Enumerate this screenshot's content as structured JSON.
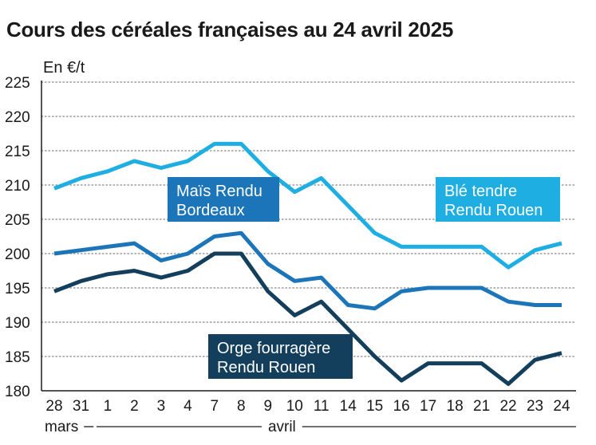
{
  "title": "Cours des céréales françaises au 24 avril 2025",
  "chart_data": {
    "type": "line",
    "title": "Cours des céréales françaises au 24 avril 2025",
    "ylabel": "En €/t",
    "xlabel": "",
    "ylim": [
      180,
      225
    ],
    "yticks": [
      180,
      185,
      190,
      195,
      200,
      205,
      210,
      215,
      220,
      225
    ],
    "grid": true,
    "categories": [
      "28",
      "31",
      "1",
      "2",
      "3",
      "4",
      "7",
      "8",
      "9",
      "10",
      "11",
      "14",
      "15",
      "16",
      "17",
      "18",
      "21",
      "22",
      "23",
      "24"
    ],
    "month_labels": [
      {
        "label": "mars",
        "start_index": 0
      },
      {
        "label": "avril",
        "start_index": 2
      }
    ],
    "series": [
      {
        "name": "Blé tendre Rendu Rouen",
        "color": "#1eaee2",
        "values": [
          209.5,
          211,
          212,
          213.5,
          212.5,
          213.5,
          216,
          216,
          212,
          209,
          211,
          207,
          203,
          201,
          201,
          201,
          201,
          198,
          200.5,
          201.5
        ]
      },
      {
        "name": "Maïs Rendu Bordeaux",
        "color": "#1c75b9",
        "values": [
          200,
          200.5,
          201,
          201.5,
          199,
          200,
          202.5,
          203,
          198.5,
          196,
          196.5,
          192.5,
          192,
          194.5,
          195,
          195,
          195,
          193,
          192.5,
          192.5
        ]
      },
      {
        "name": "Orge fourragère Rendu Rouen",
        "color": "#133f5c",
        "values": [
          194.5,
          196,
          197,
          197.5,
          196.5,
          197.5,
          200,
          200,
          194.5,
          191,
          193,
          189,
          185,
          181.5,
          184,
          184,
          184,
          181,
          184.5,
          185.5
        ]
      }
    ],
    "labels": [
      {
        "series": 1,
        "lines": [
          "Maïs Rendu",
          "Bordeaux"
        ]
      },
      {
        "series": 0,
        "lines": [
          "Blé tendre",
          "Rendu Rouen"
        ]
      },
      {
        "series": 2,
        "lines": [
          "Orge fourragère",
          "Rendu Rouen"
        ]
      }
    ]
  }
}
